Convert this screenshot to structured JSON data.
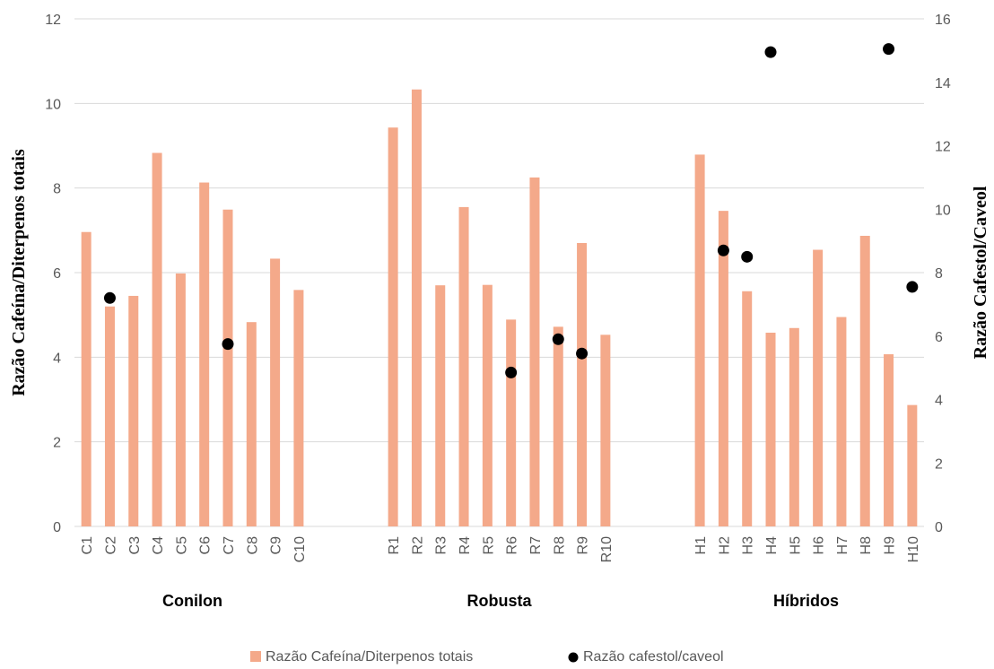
{
  "chart_data": {
    "type": "bar",
    "categories": [
      "C1",
      "C2",
      "C3",
      "C4",
      "C5",
      "C6",
      "C7",
      "C8",
      "C9",
      "C10",
      "",
      "",
      "",
      "R1",
      "R2",
      "R3",
      "R4",
      "R5",
      "R6",
      "R7",
      "R8",
      "R9",
      "R10",
      "",
      "",
      "",
      "H1",
      "H2",
      "H3",
      "H4",
      "H5",
      "H6",
      "H7",
      "H8",
      "H9",
      "H10"
    ],
    "groups": [
      {
        "label": "Conilon",
        "from": 0,
        "to": 9
      },
      {
        "label": "Robusta",
        "from": 13,
        "to": 22
      },
      {
        "label": "Híbridos",
        "from": 26,
        "to": 35
      }
    ],
    "series": [
      {
        "name": "Razão Cafeína/Diterpenos totais",
        "type": "bar",
        "axis": "left",
        "color": "#F4A98A",
        "values": [
          6.96,
          5.2,
          5.45,
          8.83,
          5.98,
          8.13,
          7.49,
          4.83,
          6.33,
          5.59,
          null,
          null,
          null,
          9.43,
          10.33,
          5.7,
          7.55,
          5.71,
          4.89,
          8.25,
          4.72,
          6.7,
          4.53,
          null,
          null,
          null,
          8.79,
          7.46,
          5.56,
          4.58,
          4.69,
          6.54,
          4.95,
          6.87,
          4.07,
          2.87
        ]
      },
      {
        "name": "Razão cafestol/caveol",
        "type": "scatter",
        "axis": "right",
        "color": "#000000",
        "values": [
          null,
          7.2,
          null,
          null,
          null,
          null,
          5.75,
          null,
          null,
          null,
          null,
          null,
          null,
          null,
          null,
          null,
          null,
          null,
          4.85,
          null,
          5.9,
          5.45,
          null,
          null,
          null,
          null,
          null,
          8.7,
          8.5,
          14.95,
          null,
          null,
          null,
          null,
          15.05,
          7.55
        ]
      }
    ],
    "y_left": {
      "label": "Razão Cafeína/Diterpenos totais",
      "min": 0,
      "max": 12,
      "ticks": [
        0,
        2,
        4,
        6,
        8,
        10,
        12
      ]
    },
    "y_right": {
      "label": "Razão Cafestol/Caveol",
      "min": 0,
      "max": 16,
      "ticks": [
        0,
        2,
        4,
        6,
        8,
        10,
        12,
        14,
        16
      ]
    },
    "grid": true,
    "legend": "bottom"
  }
}
